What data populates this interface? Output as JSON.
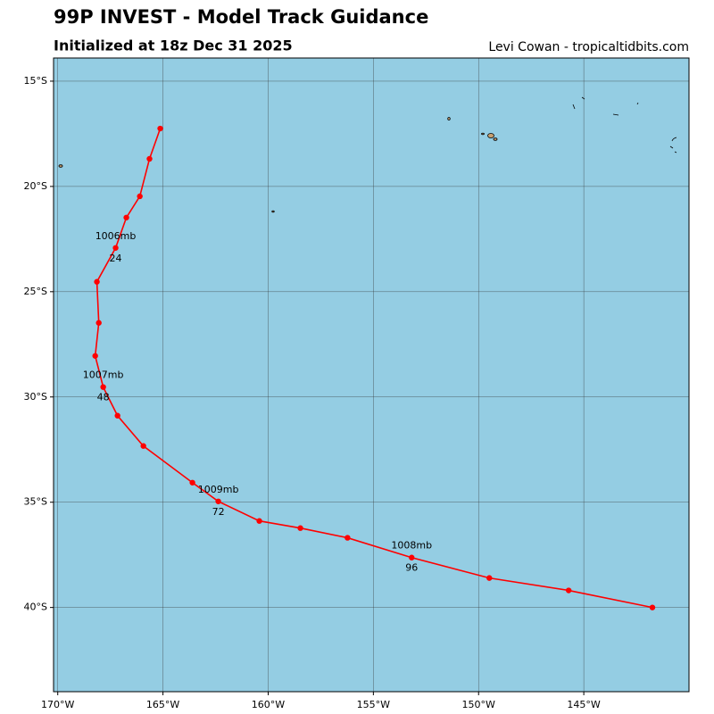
{
  "chart_data": {
    "type": "line",
    "title": "99P INVEST - Model Track Guidance",
    "subtitle": "Initialized at 18z Dec 31 2025",
    "credit": "Levi Cowan - tropicaltidbits.com",
    "x": [
      -165.13,
      -165.64,
      -166.1,
      -166.74,
      -167.25,
      -168.14,
      -168.05,
      -168.22,
      -167.84,
      -167.16,
      -165.93,
      -163.6,
      -162.37,
      -160.42,
      -158.47,
      -156.23,
      -153.18,
      -149.49,
      -145.72,
      -141.74
    ],
    "series": [
      {
        "name": "99P",
        "color": "#ff0000",
        "values": [
          -17.25,
          -18.69,
          -20.47,
          -21.48,
          -22.92,
          -24.53,
          -26.48,
          -28.05,
          -29.53,
          -30.89,
          -32.33,
          -34.07,
          -34.96,
          -35.89,
          -36.23,
          -36.69,
          -37.63,
          -38.6,
          -39.19,
          -40.0
        ]
      }
    ],
    "pressure_labels": [
      null,
      null,
      null,
      null,
      "1006mb",
      null,
      null,
      null,
      "1007mb",
      null,
      null,
      null,
      "1009mb",
      null,
      null,
      null,
      "1008mb",
      null,
      null,
      null
    ],
    "hour_labels": [
      null,
      null,
      null,
      null,
      "24",
      null,
      null,
      null,
      "48",
      null,
      null,
      null,
      "72",
      null,
      null,
      null,
      "96",
      null,
      null,
      null
    ],
    "xlim": [
      -170.2,
      -140.0
    ],
    "ylim": [
      -13.9,
      -44.0
    ],
    "xticks": [
      {
        "value": -170,
        "label": "170°W"
      },
      {
        "value": -165,
        "label": "165°W"
      },
      {
        "value": -160,
        "label": "160°W"
      },
      {
        "value": -155,
        "label": "155°W"
      },
      {
        "value": -150,
        "label": "150°W"
      },
      {
        "value": -145,
        "label": "145°W"
      }
    ],
    "yticks": [
      {
        "value": -15,
        "label": "15°S"
      },
      {
        "value": -20,
        "label": "20°S"
      },
      {
        "value": -25,
        "label": "25°S"
      },
      {
        "value": -30,
        "label": "30°S"
      },
      {
        "value": -35,
        "label": "35°S"
      },
      {
        "value": -40,
        "label": "40°S"
      }
    ],
    "grid": true,
    "ocean_color": "#94cde3"
  }
}
